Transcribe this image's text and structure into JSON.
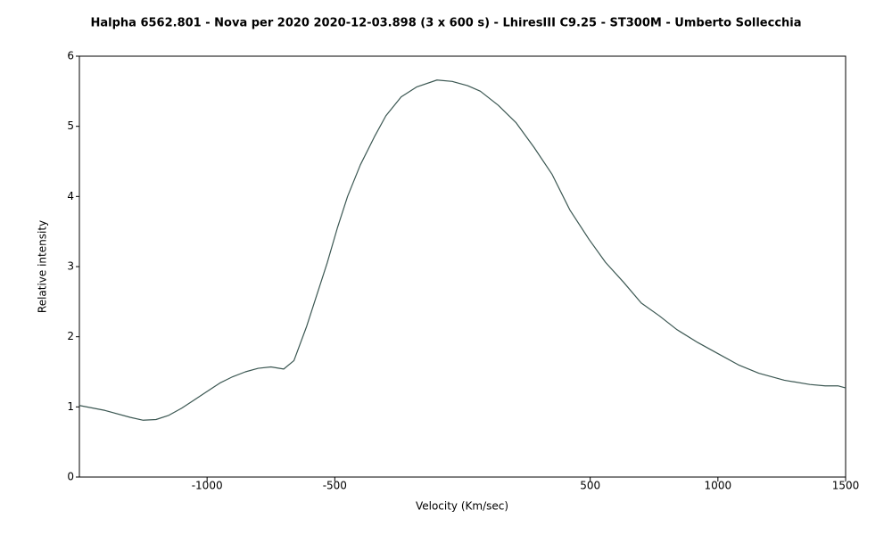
{
  "chart_data": {
    "type": "line",
    "title": "Halpha 6562.801 - Nova per 2020   2020-12-03.898  (3 x 600 s)  - LhiresIII  C9.25 - ST300M - Umberto Sollecchia",
    "xlabel": "Velocity (Km/sec)",
    "ylabel": "Relative intensity",
    "x": [
      -1500,
      -1400,
      -1300,
      -1250,
      -1200,
      -1150,
      -1100,
      -1050,
      -1000,
      -950,
      -900,
      -850,
      -800,
      -750,
      -700,
      -660,
      -610,
      -570,
      -530,
      -490,
      -450,
      -400,
      -345,
      -300,
      -240,
      -180,
      -100,
      -40,
      20,
      70,
      140,
      210,
      280,
      350,
      420,
      495,
      560,
      630,
      700,
      770,
      840,
      920,
      1000,
      1080,
      1160,
      1260,
      1360,
      1420,
      1470,
      1500
    ],
    "series": [
      {
        "name": "Halpha",
        "color": "#3b5752",
        "values": [
          1.02,
          0.95,
          0.85,
          0.81,
          0.82,
          0.88,
          0.98,
          1.1,
          1.22,
          1.34,
          1.43,
          1.5,
          1.55,
          1.57,
          1.54,
          1.66,
          2.15,
          2.6,
          3.05,
          3.55,
          4.0,
          4.45,
          4.85,
          5.15,
          5.42,
          5.56,
          5.66,
          5.64,
          5.58,
          5.5,
          5.3,
          5.05,
          4.7,
          4.32,
          3.81,
          3.39,
          3.06,
          2.78,
          2.48,
          2.3,
          2.1,
          1.92,
          1.76,
          1.6,
          1.48,
          1.38,
          1.32,
          1.3,
          1.3,
          1.27
        ]
      }
    ],
    "xlim": [
      -1500,
      1500
    ],
    "xticks": [
      -1000,
      -500,
      500,
      1000,
      1500
    ],
    "ylim": [
      0,
      6
    ],
    "yticks": [
      0,
      1,
      2,
      3,
      4,
      5,
      6
    ]
  }
}
